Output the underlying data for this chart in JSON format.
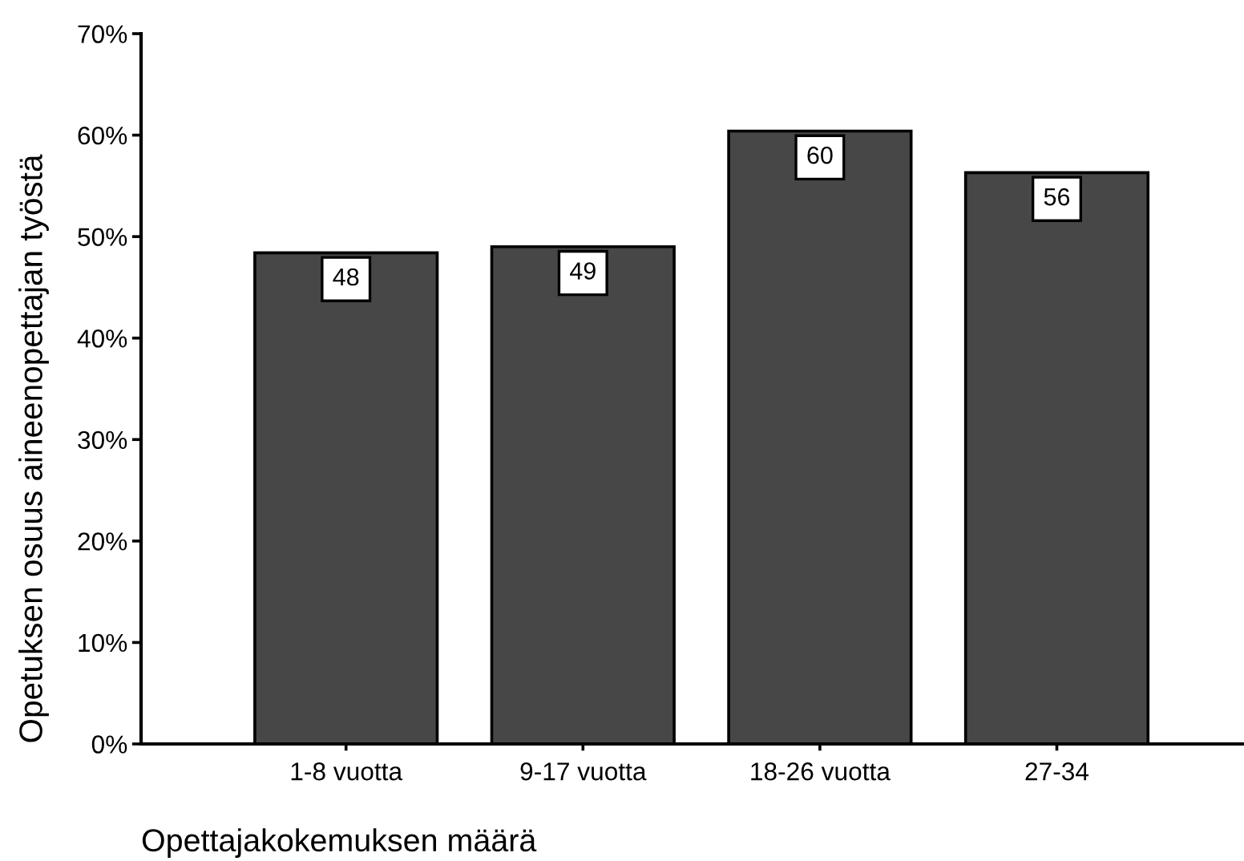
{
  "chart_data": {
    "type": "bar",
    "xlabel": "Opettajakokemuksen määrä",
    "ylabel": "Opetuksen osuus aineenopettajan työstä",
    "categories": [
      "1-8 vuotta",
      "9-17 vuotta",
      "18-26 vuotta",
      "27-34"
    ],
    "values": [
      48.4,
      49.0,
      60.4,
      56.3
    ],
    "value_labels": [
      "48",
      "49",
      "60",
      "56"
    ],
    "color": "#474747",
    "ylim": [
      0,
      70
    ],
    "yticks": [
      {
        "value": 0,
        "label": "0%"
      },
      {
        "value": 10,
        "label": "10%"
      },
      {
        "value": 20,
        "label": "20%"
      },
      {
        "value": 30,
        "label": "30%"
      },
      {
        "value": 40,
        "label": "40%"
      },
      {
        "value": 50,
        "label": "50%"
      },
      {
        "value": 60,
        "label": "60%"
      },
      {
        "value": 70,
        "label": "70%"
      }
    ],
    "grid": false
  }
}
